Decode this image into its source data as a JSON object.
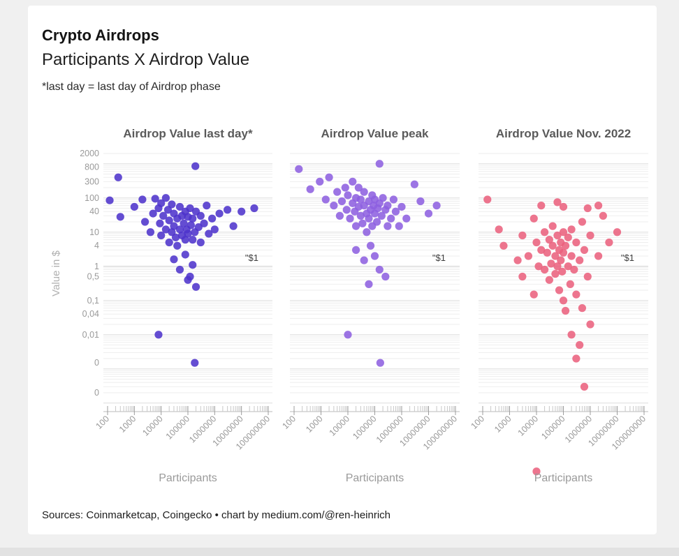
{
  "header": {
    "title": "Crypto Airdrops",
    "subtitle": "Participants X Airdrop Value",
    "note": "*last day = last day of Airdrop phase"
  },
  "axes": {
    "y_label": "Value in $",
    "x_label": "Participants",
    "y_ticks": [
      "2000",
      "800",
      "300",
      "100",
      "40",
      "10",
      "4",
      "1",
      "0,5",
      "0,1",
      "0,04",
      "0,01",
      "0",
      "0"
    ],
    "y_tick_values": [
      2000,
      800,
      300,
      100,
      40,
      10,
      4,
      1,
      0.5,
      0.1,
      0.04,
      0.01,
      0.0015,
      0.0002
    ],
    "x_ticks": [
      "100",
      "1000",
      "10000",
      "100000",
      "1000000",
      "10000000",
      "100000000"
    ],
    "x_tick_values": [
      100,
      1000,
      10000,
      100000,
      1000000,
      10000000,
      100000000
    ],
    "annotation": "\"$1"
  },
  "chart_data": [
    {
      "type": "scatter",
      "title": "Airdrop Value last day*",
      "color": "#4d33cb",
      "xlabel": "Participants",
      "ylabel": "Value in $",
      "xscale": "log",
      "yscale": "log",
      "xlim": [
        100,
        100000000
      ],
      "ylim": [
        1e-06,
        2000
      ],
      "points": [
        [
          250,
          400
        ],
        [
          190000,
          850
        ],
        [
          120,
          85
        ],
        [
          300,
          28
        ],
        [
          1000,
          55
        ],
        [
          2000,
          90
        ],
        [
          2500,
          20
        ],
        [
          4000,
          10
        ],
        [
          5000,
          35
        ],
        [
          6000,
          95
        ],
        [
          8000,
          50
        ],
        [
          9000,
          18
        ],
        [
          10000,
          70
        ],
        [
          10000,
          8
        ],
        [
          12000,
          30
        ],
        [
          15000,
          100
        ],
        [
          15000,
          12
        ],
        [
          18000,
          45
        ],
        [
          20000,
          22
        ],
        [
          20000,
          5
        ],
        [
          25000,
          65
        ],
        [
          25000,
          10
        ],
        [
          30000,
          35
        ],
        [
          30000,
          15
        ],
        [
          35000,
          7
        ],
        [
          40000,
          25
        ],
        [
          40000,
          4
        ],
        [
          50000,
          55
        ],
        [
          50000,
          12
        ],
        [
          60000,
          30
        ],
        [
          60000,
          8
        ],
        [
          70000,
          18
        ],
        [
          80000,
          40
        ],
        [
          80000,
          6
        ],
        [
          90000,
          12
        ],
        [
          100000,
          28
        ],
        [
          100000,
          9
        ],
        [
          120000,
          50
        ],
        [
          130000,
          16
        ],
        [
          150000,
          25
        ],
        [
          150000,
          6
        ],
        [
          180000,
          10
        ],
        [
          200000,
          40
        ],
        [
          250000,
          14
        ],
        [
          300000,
          30
        ],
        [
          300000,
          5
        ],
        [
          400000,
          18
        ],
        [
          500000,
          60
        ],
        [
          600000,
          9
        ],
        [
          800000,
          25
        ],
        [
          1000000,
          12
        ],
        [
          1500000,
          35
        ],
        [
          3000000,
          45
        ],
        [
          5000000,
          15
        ],
        [
          10000000,
          40
        ],
        [
          30000000,
          50
        ],
        [
          30000,
          1.6
        ],
        [
          50000,
          0.8
        ],
        [
          80000,
          2.2
        ],
        [
          100000,
          0.4
        ],
        [
          150000,
          1.1
        ],
        [
          200000,
          0.25
        ],
        [
          120000,
          0.5
        ],
        [
          8000,
          0.01
        ],
        [
          180000,
          0.0015
        ]
      ]
    },
    {
      "type": "scatter",
      "title": "Airdrop Value peak",
      "color": "#8d5fe0",
      "xlabel": "Participants",
      "ylabel": "Value in $",
      "xscale": "log",
      "yscale": "log",
      "xlim": [
        100,
        100000000
      ],
      "ylim": [
        1e-06,
        2000
      ],
      "points": [
        [
          150,
          700
        ],
        [
          400,
          180
        ],
        [
          900,
          300
        ],
        [
          1500,
          90
        ],
        [
          2000,
          400
        ],
        [
          3000,
          60
        ],
        [
          4000,
          150
        ],
        [
          5000,
          30
        ],
        [
          6000,
          80
        ],
        [
          8000,
          200
        ],
        [
          9000,
          45
        ],
        [
          10000,
          120
        ],
        [
          12000,
          25
        ],
        [
          15000,
          70
        ],
        [
          15000,
          300
        ],
        [
          18000,
          40
        ],
        [
          20000,
          100
        ],
        [
          20000,
          15
        ],
        [
          25000,
          55
        ],
        [
          25000,
          200
        ],
        [
          30000,
          30
        ],
        [
          30000,
          90
        ],
        [
          35000,
          18
        ],
        [
          40000,
          60
        ],
        [
          40000,
          150
        ],
        [
          50000,
          35
        ],
        [
          50000,
          10
        ],
        [
          60000,
          80
        ],
        [
          60000,
          25
        ],
        [
          70000,
          45
        ],
        [
          80000,
          120
        ],
        [
          80000,
          15
        ],
        [
          90000,
          60
        ],
        [
          100000,
          35
        ],
        [
          100000,
          90
        ],
        [
          120000,
          20
        ],
        [
          130000,
          50
        ],
        [
          150000,
          1000
        ],
        [
          150000,
          70
        ],
        [
          180000,
          30
        ],
        [
          200000,
          100
        ],
        [
          250000,
          45
        ],
        [
          300000,
          15
        ],
        [
          300000,
          60
        ],
        [
          400000,
          25
        ],
        [
          500000,
          90
        ],
        [
          600000,
          40
        ],
        [
          800000,
          15
        ],
        [
          1000000,
          55
        ],
        [
          1500000,
          25
        ],
        [
          3000000,
          250
        ],
        [
          5000000,
          80
        ],
        [
          10000000,
          35
        ],
        [
          20000000,
          60
        ],
        [
          20000,
          3
        ],
        [
          40000,
          1.5
        ],
        [
          70000,
          4
        ],
        [
          100000,
          2
        ],
        [
          150000,
          0.8
        ],
        [
          60000,
          0.3
        ],
        [
          250000,
          0.5
        ],
        [
          10000,
          0.01
        ],
        [
          160000,
          0.0015
        ]
      ]
    },
    {
      "type": "scatter",
      "title": "Airdrop Value Nov. 2022",
      "color": "#ea607d",
      "xlabel": "Participants",
      "ylabel": "Value in $",
      "xscale": "log",
      "yscale": "log",
      "xlim": [
        100,
        100000000
      ],
      "ylim": [
        1e-06,
        2000
      ],
      "points": [
        [
          150,
          90
        ],
        [
          400,
          12
        ],
        [
          600,
          4
        ],
        [
          2000,
          1.5
        ],
        [
          3000,
          8
        ],
        [
          3000,
          0.5
        ],
        [
          5000,
          2
        ],
        [
          8000,
          25
        ],
        [
          8000,
          0.15
        ],
        [
          10000,
          5
        ],
        [
          12000,
          1
        ],
        [
          15000,
          60
        ],
        [
          15000,
          3
        ],
        [
          20000,
          0.8
        ],
        [
          20000,
          10
        ],
        [
          25000,
          2.5
        ],
        [
          30000,
          6
        ],
        [
          30000,
          0.4
        ],
        [
          35000,
          1.2
        ],
        [
          40000,
          4
        ],
        [
          40000,
          15
        ],
        [
          50000,
          2
        ],
        [
          50000,
          0.6
        ],
        [
          60000,
          75
        ],
        [
          60000,
          8
        ],
        [
          60000,
          1
        ],
        [
          70000,
          3
        ],
        [
          70000,
          0.2
        ],
        [
          80000,
          5
        ],
        [
          80000,
          1.5
        ],
        [
          90000,
          0.7
        ],
        [
          100000,
          55
        ],
        [
          100000,
          10
        ],
        [
          100000,
          2.5
        ],
        [
          100000,
          0.1
        ],
        [
          120000,
          4
        ],
        [
          120000,
          0.05
        ],
        [
          150000,
          7
        ],
        [
          150000,
          1
        ],
        [
          180000,
          0.3
        ],
        [
          200000,
          12
        ],
        [
          200000,
          2
        ],
        [
          250000,
          0.8
        ],
        [
          300000,
          5
        ],
        [
          300000,
          0.15
        ],
        [
          400000,
          1.5
        ],
        [
          500000,
          20
        ],
        [
          500000,
          0.06
        ],
        [
          600000,
          3
        ],
        [
          800000,
          0.5
        ],
        [
          800000,
          50
        ],
        [
          1000000,
          8
        ],
        [
          1000000,
          0.02
        ],
        [
          2000000,
          2
        ],
        [
          2000000,
          60
        ],
        [
          3000000,
          30
        ],
        [
          5000000,
          5
        ],
        [
          10000000,
          10
        ],
        [
          200000,
          0.01
        ],
        [
          400000,
          0.005
        ],
        [
          300000,
          0.002
        ],
        [
          600000,
          0.0003
        ],
        [
          10000,
          1e-06
        ]
      ]
    }
  ],
  "footer": {
    "source": "Sources: Coinmarketcap, Coingecko • chart by medium.com/@ren-heinrich"
  }
}
